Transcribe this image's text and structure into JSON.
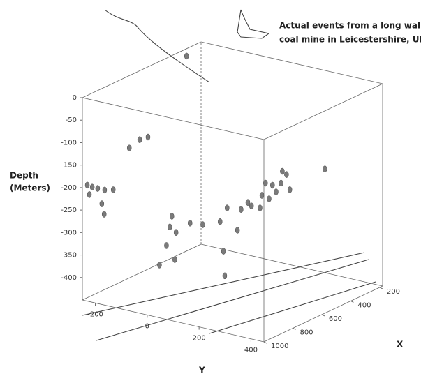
{
  "chart_data": {
    "type": "scatter3d",
    "title": [
      "Actual events from a long wall",
      "coal mine in Leicestershire, UK"
    ],
    "zlabel": [
      "Depth",
      "(Meters)"
    ],
    "xlabel": "X",
    "ylabel": "Y",
    "xlim": [
      1000,
      180
    ],
    "ylim": [
      -250,
      450
    ],
    "zlim": [
      -450,
      0
    ],
    "xticks": [
      200,
      400,
      600,
      800,
      1000
    ],
    "yticks": [
      -200,
      0,
      200,
      400
    ],
    "zticks": [
      0,
      -50,
      -100,
      -150,
      -200,
      -250,
      -300,
      -350,
      -400
    ],
    "series": [
      {
        "color": "#7a7a7a",
        "x": [
          1000,
          1000,
          1000,
          1000,
          1000,
          1000,
          1000,
          1000,
          1000,
          1000,
          1000,
          600,
          600,
          600,
          600,
          600,
          600,
          600,
          600,
          500,
          500,
          500,
          500,
          500,
          500,
          500,
          500,
          500,
          500,
          500,
          500,
          500,
          500,
          500,
          500,
          500,
          500,
          500,
          300
        ],
        "y": [
          -231,
          -212,
          -191,
          -164,
          -131,
          -175,
          -166,
          -223,
          -69,
          -29,
          3,
          -128,
          -136,
          -58,
          -112,
          -149,
          -176,
          -117,
          -9,
          15,
          20,
          29,
          2,
          69,
          83,
          123,
          156,
          191,
          218,
          237,
          258,
          204,
          163,
          109,
          271,
          177,
          242,
          406,
          -239
        ],
        "z": [
          -192,
          -194,
          -194,
          -194,
          -189,
          -226,
          -248,
          -212,
          -88,
          -64,
          -54,
          -308,
          -333,
          -314,
          -342,
          -376,
          -423,
          -403,
          -311,
          -382,
          -436,
          -284,
          -318,
          -328,
          -280,
          -267,
          -267,
          -242,
          -223,
          -201,
          -179,
          -210,
          -238,
          -261,
          -211,
          -209,
          -174,
          -147,
          -12
        ]
      }
    ]
  }
}
